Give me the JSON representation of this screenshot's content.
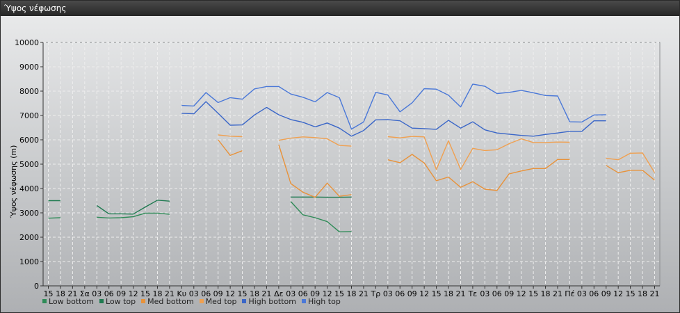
{
  "window": {
    "title": "Ύψος νέφωσης"
  },
  "chart_data": {
    "type": "line",
    "ylabel": "Ύψος νέφωσης (m)",
    "ylim": [
      0,
      10000
    ],
    "yticks": [
      0,
      1000,
      2000,
      3000,
      4000,
      5000,
      6000,
      7000,
      8000,
      9000,
      10000
    ],
    "categories": [
      "15",
      "18",
      "21",
      "Σα",
      "03",
      "06",
      "09",
      "12",
      "15",
      "18",
      "21",
      "Κυ",
      "03",
      "06",
      "09",
      "12",
      "15",
      "18",
      "21",
      "Δε",
      "03",
      "06",
      "09",
      "12",
      "15",
      "18",
      "21",
      "Τρ",
      "03",
      "06",
      "09",
      "12",
      "15",
      "18",
      "21",
      "Τε",
      "03",
      "06",
      "09",
      "12",
      "15",
      "18",
      "21",
      "Πέ",
      "03",
      "06",
      "09",
      "12",
      "15",
      "18",
      "21"
    ],
    "grid": true,
    "legend_position": "bottom",
    "series": [
      {
        "name": "Low bottom",
        "color": "#2e8b57",
        "values": [
          2780,
          2800,
          null,
          null,
          2820,
          2790,
          2800,
          2840,
          2990,
          2990,
          2940,
          null,
          null,
          null,
          null,
          null,
          null,
          null,
          null,
          null,
          3460,
          2920,
          2800,
          2640,
          2220,
          2230,
          null,
          null,
          null,
          null,
          null,
          null,
          null,
          null,
          null,
          null,
          null,
          null,
          null,
          null,
          null,
          null,
          null,
          null,
          null,
          null,
          null,
          null,
          null,
          null,
          null
        ]
      },
      {
        "name": "Low top",
        "color": "#1e7a50",
        "values": [
          3500,
          3500,
          null,
          null,
          3300,
          2960,
          2960,
          2950,
          3240,
          3520,
          3480,
          null,
          null,
          null,
          null,
          null,
          null,
          null,
          null,
          null,
          3650,
          3650,
          3650,
          3640,
          3640,
          3650,
          null,
          null,
          null,
          null,
          null,
          null,
          null,
          null,
          null,
          null,
          null,
          null,
          null,
          null,
          null,
          null,
          null,
          null,
          null,
          null,
          null,
          null,
          null,
          null,
          null
        ]
      },
      {
        "name": "Med bottom",
        "color": "#e8923a",
        "values": [
          null,
          null,
          null,
          null,
          null,
          null,
          null,
          null,
          null,
          null,
          null,
          null,
          null,
          null,
          6000,
          5360,
          5550,
          null,
          null,
          5800,
          4200,
          3850,
          3640,
          4220,
          3680,
          3750,
          null,
          null,
          5180,
          5060,
          5400,
          5050,
          4320,
          4470,
          4050,
          4280,
          3970,
          3920,
          4600,
          4720,
          4820,
          4820,
          5190,
          5190,
          null,
          null,
          4950,
          4650,
          4750,
          4750,
          4340
        ]
      },
      {
        "name": "Med top",
        "color": "#f0a050",
        "values": [
          null,
          null,
          null,
          null,
          null,
          null,
          null,
          null,
          null,
          null,
          null,
          null,
          null,
          null,
          6200,
          6150,
          6130,
          null,
          null,
          5980,
          6070,
          6120,
          6090,
          6040,
          5770,
          5740,
          null,
          null,
          6130,
          6080,
          6140,
          6120,
          4780,
          5960,
          4780,
          5650,
          5560,
          5590,
          5840,
          6040,
          5890,
          5890,
          5910,
          5900,
          null,
          null,
          5240,
          5180,
          5450,
          5460,
          4650
        ]
      },
      {
        "name": "High bottom",
        "color": "#3a66c8",
        "values": [
          null,
          null,
          null,
          null,
          null,
          null,
          null,
          null,
          null,
          null,
          null,
          7090,
          7070,
          7570,
          7090,
          6600,
          6610,
          7020,
          7330,
          7030,
          6830,
          6720,
          6530,
          6690,
          6480,
          6150,
          6380,
          6820,
          6830,
          6780,
          6480,
          6460,
          6430,
          6800,
          6480,
          6740,
          6410,
          6280,
          6230,
          6180,
          6150,
          6220,
          6280,
          6350,
          6350,
          6780,
          6780,
          null,
          null,
          null,
          null
        ]
      },
      {
        "name": "High top",
        "color": "#4a78d8",
        "values": [
          null,
          null,
          null,
          null,
          null,
          null,
          null,
          null,
          null,
          null,
          null,
          7410,
          7390,
          7940,
          7530,
          7730,
          7670,
          8090,
          8190,
          8190,
          7880,
          7750,
          7560,
          7940,
          7730,
          6440,
          6730,
          7950,
          7840,
          7150,
          7520,
          8100,
          8080,
          7830,
          7350,
          8290,
          8200,
          7900,
          7950,
          8030,
          7930,
          7820,
          7800,
          6740,
          6730,
          7020,
          7030,
          null,
          null,
          null,
          null
        ]
      }
    ]
  }
}
